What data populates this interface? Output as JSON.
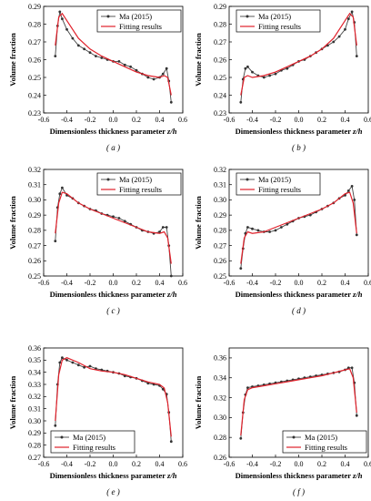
{
  "figure": {
    "panels": [
      {
        "id": "a",
        "caption": "( a )",
        "ylabel": "Volume fraction",
        "xlabel_main": "Dimensionless thickness parameter ",
        "xlabel_var": "z/h",
        "legend": [
          "Ma (2015)",
          "Fitting results"
        ],
        "legend_pos": "top-right"
      },
      {
        "id": "b",
        "caption": "( b )",
        "ylabel": "Volume fraction",
        "xlabel_main": "Dimensionless thickness parameter ",
        "xlabel_var": "z/h",
        "legend": [
          "Ma (2015)",
          "Fitting results"
        ],
        "legend_pos": "top-left"
      },
      {
        "id": "c",
        "caption": "( c )",
        "ylabel": "Volume fraction",
        "xlabel_main": "Dimensionless thickness parameter ",
        "xlabel_var": "z/h",
        "legend": [
          "Ma (2015)",
          "Fitting results"
        ],
        "legend_pos": "top-right"
      },
      {
        "id": "d",
        "caption": "( d )",
        "ylabel": "Volume fraction",
        "xlabel_main": "Dimensionless thickness parameter ",
        "xlabel_var": "z/h",
        "legend": [
          "Ma (2015)",
          "Fitting results"
        ],
        "legend_pos": "top-left"
      },
      {
        "id": "e",
        "caption": "( e )",
        "ylabel": "Volume fraction",
        "xlabel_main": "Dimensionless thickness parameter ",
        "xlabel_var": "z/h",
        "legend": [
          "Ma (2015)",
          "Fitting results"
        ],
        "legend_pos": "bottom-left"
      },
      {
        "id": "f",
        "caption": "( f )",
        "ylabel": "Volume fraction",
        "xlabel_main": "Dimensionless thickness parameter ",
        "xlabel_var": "z/h",
        "legend": [
          "Ma (2015)",
          "Fitting results"
        ],
        "legend_pos": "bottom-right"
      }
    ]
  },
  "chart_data": [
    {
      "type": "line",
      "panel": "a",
      "x_ticks": [
        -0.6,
        -0.4,
        -0.2,
        0.0,
        0.2,
        0.4,
        0.6
      ],
      "y_ticks": [
        0.23,
        0.24,
        0.25,
        0.26,
        0.27,
        0.28,
        0.29
      ],
      "xlim": [
        -0.6,
        0.6
      ],
      "ylim": [
        0.23,
        0.29
      ],
      "series": [
        {
          "name": "Ma (2015)",
          "style": "markers+line",
          "color": "#444444",
          "x": [
            -0.5,
            -0.48,
            -0.46,
            -0.44,
            -0.4,
            -0.35,
            -0.3,
            -0.25,
            -0.2,
            -0.15,
            -0.1,
            -0.05,
            0.0,
            0.05,
            0.1,
            0.15,
            0.2,
            0.25,
            0.3,
            0.35,
            0.4,
            0.43,
            0.46,
            0.48,
            0.5
          ],
          "y": [
            0.262,
            0.279,
            0.287,
            0.283,
            0.277,
            0.272,
            0.268,
            0.266,
            0.264,
            0.262,
            0.261,
            0.26,
            0.259,
            0.259,
            0.257,
            0.256,
            0.254,
            0.252,
            0.25,
            0.249,
            0.25,
            0.252,
            0.255,
            0.248,
            0.236
          ]
        },
        {
          "name": "Fitting results",
          "style": "line",
          "color": "#e0202a",
          "x": [
            -0.5,
            -0.47,
            -0.44,
            -0.4,
            -0.3,
            -0.2,
            -0.1,
            0.0,
            0.1,
            0.2,
            0.3,
            0.4,
            0.44,
            0.47,
            0.5
          ],
          "y": [
            0.268,
            0.284,
            0.286,
            0.282,
            0.272,
            0.266,
            0.262,
            0.259,
            0.256,
            0.253,
            0.251,
            0.25,
            0.251,
            0.25,
            0.24
          ]
        }
      ]
    },
    {
      "type": "line",
      "panel": "b",
      "x_ticks": [
        -0.6,
        -0.4,
        -0.2,
        0.0,
        0.2,
        0.4,
        0.6
      ],
      "y_ticks": [
        0.23,
        0.24,
        0.25,
        0.26,
        0.27,
        0.28,
        0.29
      ],
      "xlim": [
        -0.6,
        0.6
      ],
      "ylim": [
        0.23,
        0.29
      ],
      "series": [
        {
          "name": "Ma (2015)",
          "style": "markers+line",
          "color": "#444444",
          "x": [
            -0.5,
            -0.48,
            -0.46,
            -0.44,
            -0.4,
            -0.35,
            -0.3,
            -0.25,
            -0.2,
            -0.15,
            -0.1,
            -0.05,
            0.0,
            0.05,
            0.1,
            0.15,
            0.2,
            0.25,
            0.3,
            0.35,
            0.4,
            0.43,
            0.46,
            0.48,
            0.5
          ],
          "y": [
            0.236,
            0.249,
            0.255,
            0.256,
            0.253,
            0.251,
            0.25,
            0.251,
            0.252,
            0.254,
            0.255,
            0.257,
            0.259,
            0.26,
            0.262,
            0.264,
            0.266,
            0.268,
            0.27,
            0.273,
            0.277,
            0.283,
            0.287,
            0.281,
            0.262
          ]
        },
        {
          "name": "Fitting results",
          "style": "line",
          "color": "#e0202a",
          "x": [
            -0.5,
            -0.47,
            -0.44,
            -0.4,
            -0.3,
            -0.2,
            -0.1,
            0.0,
            0.1,
            0.2,
            0.3,
            0.4,
            0.44,
            0.47,
            0.5
          ],
          "y": [
            0.24,
            0.25,
            0.251,
            0.25,
            0.251,
            0.253,
            0.256,
            0.259,
            0.262,
            0.266,
            0.272,
            0.282,
            0.286,
            0.284,
            0.268
          ]
        }
      ]
    },
    {
      "type": "line",
      "panel": "c",
      "x_ticks": [
        -0.6,
        -0.4,
        -0.2,
        0.0,
        0.2,
        0.4,
        0.6
      ],
      "y_ticks": [
        0.25,
        0.26,
        0.27,
        0.28,
        0.29,
        0.3,
        0.31,
        0.32
      ],
      "xlim": [
        -0.6,
        0.6
      ],
      "ylim": [
        0.25,
        0.32
      ],
      "series": [
        {
          "name": "Ma (2015)",
          "style": "markers+line",
          "color": "#444444",
          "x": [
            -0.5,
            -0.48,
            -0.46,
            -0.44,
            -0.4,
            -0.35,
            -0.3,
            -0.25,
            -0.2,
            -0.15,
            -0.1,
            -0.05,
            0.0,
            0.05,
            0.1,
            0.15,
            0.2,
            0.25,
            0.3,
            0.35,
            0.4,
            0.43,
            0.46,
            0.48,
            0.5
          ],
          "y": [
            0.273,
            0.295,
            0.304,
            0.308,
            0.303,
            0.301,
            0.298,
            0.296,
            0.294,
            0.293,
            0.291,
            0.29,
            0.289,
            0.288,
            0.286,
            0.284,
            0.282,
            0.28,
            0.279,
            0.278,
            0.279,
            0.282,
            0.282,
            0.27,
            0.25
          ]
        },
        {
          "name": "Fitting results",
          "style": "line",
          "color": "#e0202a",
          "x": [
            -0.5,
            -0.47,
            -0.44,
            -0.4,
            -0.3,
            -0.2,
            -0.1,
            0.0,
            0.1,
            0.2,
            0.3,
            0.4,
            0.44,
            0.47,
            0.5
          ],
          "y": [
            0.278,
            0.298,
            0.305,
            0.304,
            0.298,
            0.294,
            0.291,
            0.288,
            0.285,
            0.282,
            0.279,
            0.278,
            0.279,
            0.275,
            0.258
          ]
        }
      ]
    },
    {
      "type": "line",
      "panel": "d",
      "x_ticks": [
        -0.6,
        -0.4,
        -0.2,
        0.0,
        0.2,
        0.4,
        0.6
      ],
      "y_ticks": [
        0.25,
        0.26,
        0.27,
        0.28,
        0.29,
        0.3,
        0.31,
        0.32
      ],
      "xlim": [
        -0.6,
        0.6
      ],
      "ylim": [
        0.25,
        0.32
      ],
      "series": [
        {
          "name": "Ma (2015)",
          "style": "markers+line",
          "color": "#444444",
          "x": [
            -0.5,
            -0.48,
            -0.46,
            -0.44,
            -0.4,
            -0.35,
            -0.3,
            -0.25,
            -0.2,
            -0.15,
            -0.1,
            -0.05,
            0.0,
            0.05,
            0.1,
            0.15,
            0.2,
            0.25,
            0.3,
            0.35,
            0.4,
            0.43,
            0.46,
            0.48,
            0.5
          ],
          "y": [
            0.255,
            0.268,
            0.278,
            0.282,
            0.281,
            0.28,
            0.279,
            0.279,
            0.28,
            0.282,
            0.284,
            0.286,
            0.288,
            0.289,
            0.29,
            0.292,
            0.294,
            0.296,
            0.298,
            0.301,
            0.303,
            0.306,
            0.309,
            0.3,
            0.277
          ]
        },
        {
          "name": "Fitting results",
          "style": "line",
          "color": "#e0202a",
          "x": [
            -0.5,
            -0.47,
            -0.44,
            -0.4,
            -0.3,
            -0.2,
            -0.1,
            0.0,
            0.1,
            0.2,
            0.3,
            0.4,
            0.44,
            0.47,
            0.5
          ],
          "y": [
            0.258,
            0.275,
            0.279,
            0.278,
            0.279,
            0.282,
            0.285,
            0.288,
            0.291,
            0.294,
            0.298,
            0.304,
            0.305,
            0.298,
            0.278
          ]
        }
      ]
    },
    {
      "type": "line",
      "panel": "e",
      "x_ticks": [
        -0.6,
        -0.4,
        -0.2,
        0.0,
        0.2,
        0.4,
        0.6
      ],
      "y_ticks": [
        0.27,
        0.28,
        0.29,
        0.3,
        0.31,
        0.32,
        0.33,
        0.34,
        0.35,
        0.36
      ],
      "xlim": [
        -0.6,
        0.6
      ],
      "ylim": [
        0.27,
        0.36
      ],
      "series": [
        {
          "name": "Ma (2015)",
          "style": "markers+line",
          "color": "#444444",
          "x": [
            -0.5,
            -0.48,
            -0.46,
            -0.44,
            -0.4,
            -0.35,
            -0.3,
            -0.25,
            -0.2,
            -0.15,
            -0.1,
            -0.05,
            0.0,
            0.05,
            0.1,
            0.15,
            0.2,
            0.25,
            0.3,
            0.35,
            0.4,
            0.43,
            0.46,
            0.48,
            0.5
          ],
          "y": [
            0.296,
            0.33,
            0.348,
            0.352,
            0.35,
            0.348,
            0.346,
            0.344,
            0.345,
            0.343,
            0.342,
            0.341,
            0.34,
            0.339,
            0.337,
            0.336,
            0.335,
            0.333,
            0.331,
            0.33,
            0.329,
            0.326,
            0.322,
            0.307,
            0.283
          ]
        },
        {
          "name": "Fitting results",
          "style": "line",
          "color": "#e0202a",
          "x": [
            -0.5,
            -0.47,
            -0.44,
            -0.4,
            -0.3,
            -0.2,
            -0.1,
            0.0,
            0.1,
            0.2,
            0.3,
            0.4,
            0.44,
            0.47,
            0.5
          ],
          "y": [
            0.3,
            0.338,
            0.35,
            0.352,
            0.348,
            0.343,
            0.341,
            0.34,
            0.338,
            0.335,
            0.332,
            0.33,
            0.327,
            0.315,
            0.287
          ]
        }
      ]
    },
    {
      "type": "line",
      "panel": "f",
      "x_ticks": [
        -0.6,
        -0.4,
        -0.2,
        0.0,
        0.2,
        0.4,
        0.6
      ],
      "y_ticks": [
        0.26,
        0.28,
        0.3,
        0.32,
        0.34,
        0.36
      ],
      "xlim": [
        -0.6,
        0.6
      ],
      "ylim": [
        0.26,
        0.37
      ],
      "series": [
        {
          "name": "Ma (2015)",
          "style": "markers+line",
          "color": "#444444",
          "x": [
            -0.5,
            -0.48,
            -0.46,
            -0.44,
            -0.4,
            -0.35,
            -0.3,
            -0.25,
            -0.2,
            -0.15,
            -0.1,
            -0.05,
            0.0,
            0.05,
            0.1,
            0.15,
            0.2,
            0.25,
            0.3,
            0.35,
            0.4,
            0.43,
            0.46,
            0.48,
            0.5
          ],
          "y": [
            0.279,
            0.305,
            0.323,
            0.33,
            0.331,
            0.332,
            0.333,
            0.334,
            0.335,
            0.336,
            0.337,
            0.338,
            0.339,
            0.34,
            0.341,
            0.342,
            0.343,
            0.344,
            0.345,
            0.346,
            0.348,
            0.35,
            0.35,
            0.335,
            0.302
          ]
        },
        {
          "name": "Fitting results",
          "style": "line",
          "color": "#e0202a",
          "x": [
            -0.5,
            -0.47,
            -0.44,
            -0.4,
            -0.3,
            -0.2,
            -0.1,
            0.0,
            0.1,
            0.2,
            0.3,
            0.4,
            0.44,
            0.47,
            0.5
          ],
          "y": [
            0.282,
            0.318,
            0.328,
            0.33,
            0.332,
            0.334,
            0.336,
            0.338,
            0.34,
            0.342,
            0.345,
            0.348,
            0.349,
            0.34,
            0.305
          ]
        }
      ]
    }
  ]
}
